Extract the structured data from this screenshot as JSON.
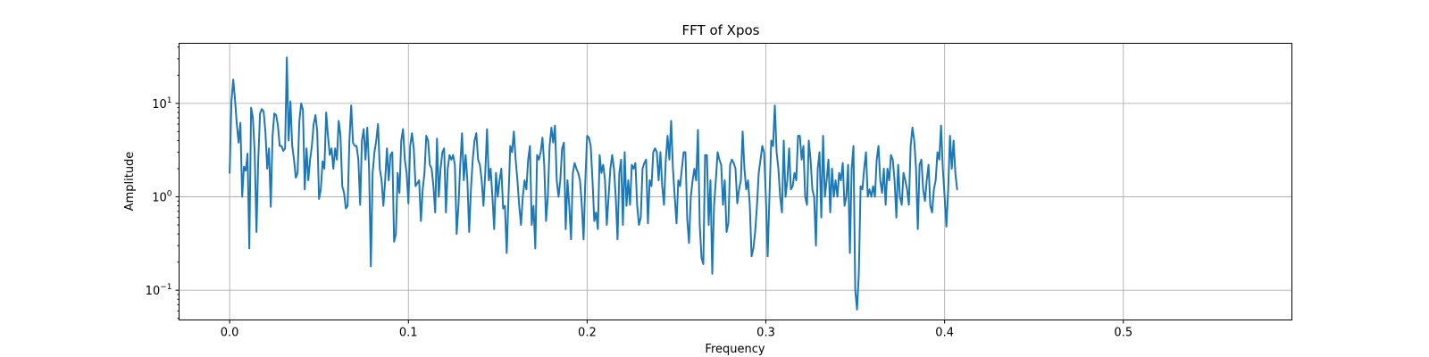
{
  "chart_data": {
    "type": "line",
    "title": "FFT of Xpos",
    "xlabel": "Frequency",
    "ylabel": "Amplitude",
    "yscale": "log",
    "xlim": [
      -0.0283,
      0.5943
    ],
    "ylim": [
      0.048,
      44
    ],
    "grid": true,
    "x_ticks": [
      {
        "value": 0.0,
        "label": "0.0"
      },
      {
        "value": 0.1,
        "label": "0.1"
      },
      {
        "value": 0.2,
        "label": "0.2"
      },
      {
        "value": 0.3,
        "label": "0.3"
      },
      {
        "value": 0.4,
        "label": "0.4"
      },
      {
        "value": 0.5,
        "label": "0.5"
      }
    ],
    "y_ticks": [
      {
        "value": 0.1,
        "base": "10",
        "exp": "−1"
      },
      {
        "value": 1,
        "base": "10",
        "exp": "0"
      },
      {
        "value": 10,
        "base": "10",
        "exp": "1"
      }
    ],
    "series": [
      {
        "color": "#1f77b4",
        "x_start": 0.0,
        "x_step": 0.001,
        "values": [
          1.8,
          10.5,
          18.0,
          11.0,
          6.0,
          3.8,
          6.2,
          1.0,
          2.1,
          1.9,
          2.9,
          0.28,
          9.0,
          7.0,
          3.0,
          0.42,
          2.5,
          7.8,
          8.7,
          8.2,
          5.0,
          2.0,
          3.3,
          0.78,
          4.5,
          7.8,
          7.5,
          5.8,
          3.5,
          3.5,
          3.1,
          3.3,
          31.0,
          4.0,
          10.5,
          3.5,
          2.5,
          1.6,
          1.8,
          6.5,
          10.0,
          8.5,
          1.2,
          3.3,
          1.5,
          2.5,
          3.5,
          6.0,
          7.5,
          5.0,
          0.95,
          1.2,
          2.4,
          2.0,
          8.0,
          4.5,
          2.8,
          3.3,
          2.0,
          3.3,
          2.5,
          6.5,
          4.5,
          1.3,
          1.1,
          0.75,
          0.8,
          4.0,
          9.5,
          3.8,
          3.5,
          3.5,
          2.5,
          0.82,
          4.0,
          5.3,
          2.5,
          5.5,
          2.0,
          0.18,
          1.8,
          3.0,
          4.0,
          6.0,
          2.0,
          1.5,
          0.8,
          1.5,
          3.3,
          1.5,
          2.8,
          3.0,
          0.33,
          0.4,
          1.8,
          1.1,
          4.0,
          5.3,
          2.5,
          1.8,
          0.85,
          3.5,
          4.8,
          3.3,
          1.3,
          1.4,
          1.5,
          0.55,
          1.2,
          1.8,
          4.5,
          4.0,
          2.2,
          2.0,
          1.3,
          0.68,
          4.2,
          1.0,
          2.0,
          3.0,
          3.3,
          0.68,
          2.0,
          2.8,
          2.5,
          2.8,
          2.2,
          0.4,
          0.8,
          2.2,
          4.8,
          1.5,
          2.8,
          1.5,
          0.42,
          1.2,
          2.5,
          4.0,
          4.8,
          2.5,
          2.2,
          1.5,
          0.8,
          1.8,
          5.3,
          1.5,
          2.0,
          1.0,
          0.45,
          1.8,
          1.0,
          1.5,
          2.0,
          0.75,
          0.8,
          0.25,
          1.0,
          3.5,
          3.0,
          5.0,
          2.5,
          1.5,
          0.8,
          0.5,
          1.0,
          1.5,
          1.2,
          2.5,
          3.5,
          0.5,
          0.8,
          0.28,
          2.8,
          2.5,
          3.0,
          4.3,
          2.2,
          0.55,
          1.0,
          3.5,
          5.5,
          3.8,
          5.8,
          1.5,
          1.0,
          1.5,
          3.3,
          3.8,
          0.45,
          1.5,
          0.8,
          0.35,
          1.8,
          2.3,
          2.0,
          1.8,
          1.5,
          0.82,
          0.35,
          1.5,
          4.5,
          4.3,
          3.5,
          1.5,
          0.55,
          0.68,
          0.45,
          2.8,
          1.8,
          2.2,
          1.5,
          0.5,
          1.0,
          2.0,
          2.8,
          2.0,
          1.0,
          0.35,
          1.8,
          2.5,
          0.5,
          3.0,
          0.8,
          1.5,
          0.82,
          2.2,
          2.0,
          2.3,
          0.8,
          0.5,
          0.6,
          2.0,
          2.3,
          2.5,
          0.52,
          1.5,
          1.3,
          3.0,
          3.3,
          3.0,
          1.5,
          3.0,
          1.3,
          0.82,
          2.5,
          4.5,
          2.5,
          6.5,
          2.0,
          1.0,
          0.52,
          1.5,
          1.3,
          2.0,
          3.0,
          3.0,
          0.58,
          0.32,
          1.0,
          1.5,
          2.0,
          1.5,
          5.2,
          0.5,
          0.22,
          0.19,
          2.8,
          2.8,
          0.5,
          1.5,
          0.15,
          0.8,
          1.5,
          3.0,
          2.5,
          2.2,
          0.82,
          1.5,
          0.42,
          0.52,
          2.2,
          2.5,
          2.3,
          2.0,
          0.85,
          1.2,
          1.5,
          5.0,
          2.0,
          1.2,
          1.5,
          0.82,
          0.23,
          0.28,
          0.42,
          0.8,
          1.8,
          2.5,
          3.5,
          3.0,
          1.0,
          0.23,
          1.0,
          4.0,
          3.5,
          9.5,
          3.0,
          2.0,
          1.0,
          0.68,
          4.0,
          1.0,
          1.5,
          3.3,
          1.2,
          1.3,
          1.8,
          1.5,
          4.5,
          4.5,
          2.5,
          3.5,
          1.0,
          0.82,
          4.0,
          2.5,
          1.2,
          1.0,
          0.3,
          2.0,
          3.0,
          0.6,
          4.5,
          1.0,
          1.5,
          2.5,
          0.68,
          2.0,
          1.0,
          1.5,
          1.0,
          1.8,
          1.5,
          2.3,
          0.8,
          1.0,
          2.2,
          0.25,
          2.0,
          3.5,
          0.1,
          0.062,
          0.15,
          1.3,
          1.2,
          2.0,
          3.0,
          1.0,
          1.2,
          1.0,
          1.3,
          1.0,
          2.5,
          3.5,
          1.5,
          1.1,
          2.0,
          0.82,
          2.0,
          1.5,
          2.8,
          2.5,
          1.5,
          0.6,
          2.2,
          1.0,
          0.82,
          1.8,
          1.5,
          1.2,
          0.82,
          3.5,
          5.5,
          4.0,
          2.0,
          0.45,
          2.2,
          2.5,
          1.2,
          0.9,
          1.5,
          2.2,
          0.8,
          0.68,
          1.2,
          1.5,
          3.0,
          2.5,
          5.8,
          2.0,
          1.0,
          0.48,
          1.2,
          4.5,
          2.0,
          4.0,
          1.8,
          1.2
        ]
      }
    ]
  }
}
